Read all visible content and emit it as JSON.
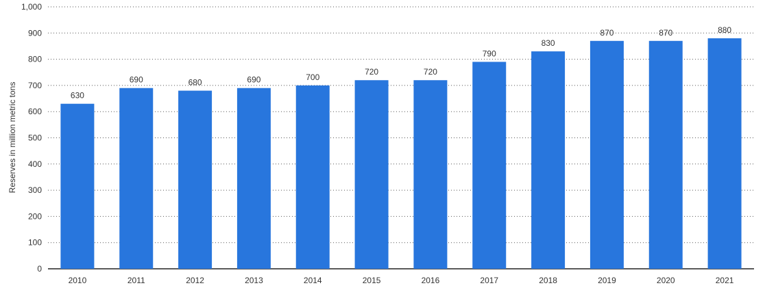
{
  "chart_data": {
    "type": "bar",
    "categories": [
      "2010",
      "2011",
      "2012",
      "2013",
      "2014",
      "2015",
      "2016",
      "2017",
      "2018",
      "2019",
      "2020",
      "2021"
    ],
    "values": [
      630,
      690,
      680,
      690,
      700,
      720,
      720,
      790,
      830,
      870,
      870,
      880
    ],
    "data_labels": [
      "630",
      "690",
      "680",
      "690",
      "700",
      "720",
      "720",
      "790",
      "830",
      "870",
      "870",
      "880"
    ],
    "ylabel": "Reserves in million metric tons",
    "ylim": [
      0,
      1000
    ],
    "yticks": [
      0,
      100,
      200,
      300,
      400,
      500,
      600,
      700,
      800,
      900,
      1000
    ],
    "ytick_labels": [
      "0",
      "100",
      "200",
      "300",
      "400",
      "500",
      "600",
      "700",
      "800",
      "900",
      "1,000"
    ],
    "grid": true,
    "bar_color": "#2876dd"
  }
}
